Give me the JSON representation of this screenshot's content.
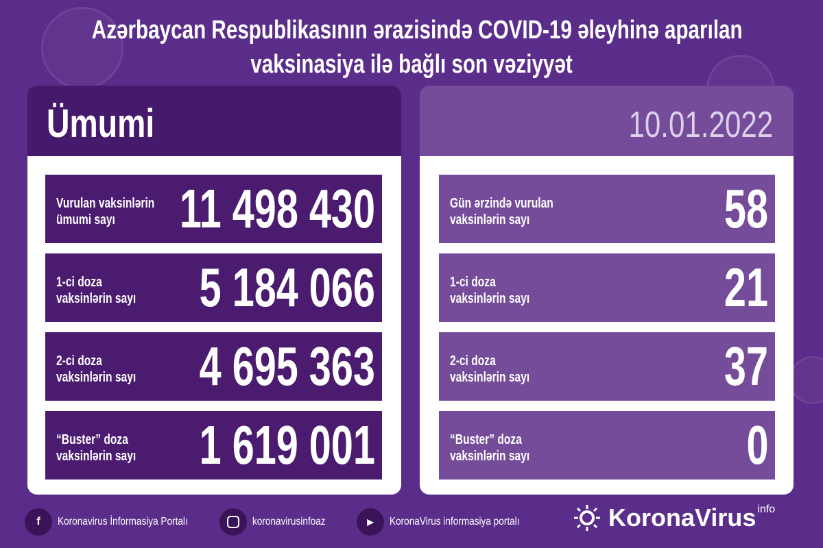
{
  "title": {
    "line1": "Azərbaycan Respublikasının ərazisində COVID-19 əleyhinə aparılan",
    "line2": "vaksinasiya ilə bağlı son vəziyyət"
  },
  "left": {
    "header": "Ümumi",
    "rows": [
      {
        "label1": "Vurulan vaksinlərin",
        "label2": "ümumi sayı",
        "value": "11 498 430"
      },
      {
        "label1": "1-ci doza",
        "label2": "vaksinlərin sayı",
        "value": "5 184 066"
      },
      {
        "label1": "2-ci doza",
        "label2": "vaksinlərin sayı",
        "value": "4 695 363"
      },
      {
        "label1": "“Buster” doza",
        "label2": "vaksinlərin sayı",
        "value": "1 619 001"
      }
    ]
  },
  "right": {
    "date": "10.01.2022",
    "rows": [
      {
        "label1": "Gün ərzində vurulan",
        "label2": "vaksinlərin sayı",
        "value": "58"
      },
      {
        "label1": "1-ci doza",
        "label2": "vaksinlərin sayı",
        "value": "21"
      },
      {
        "label1": "2-ci doza",
        "label2": "vaksinlərin sayı",
        "value": "37"
      },
      {
        "label1": "“Buster” doza",
        "label2": "vaksinlərin sayı",
        "value": "0"
      }
    ]
  },
  "footer": {
    "facebook": "Koronavirus İnformasiya Portalı",
    "instagram": "koronavirusinfoaz",
    "youtube": "KoronaVirus informasiya portalı",
    "logo": "KoronaVirus",
    "logo_sup": "info"
  },
  "colors": {
    "background": "#5b2d8a",
    "left_row": "#4a1b6e",
    "right_row": "#744c99"
  }
}
